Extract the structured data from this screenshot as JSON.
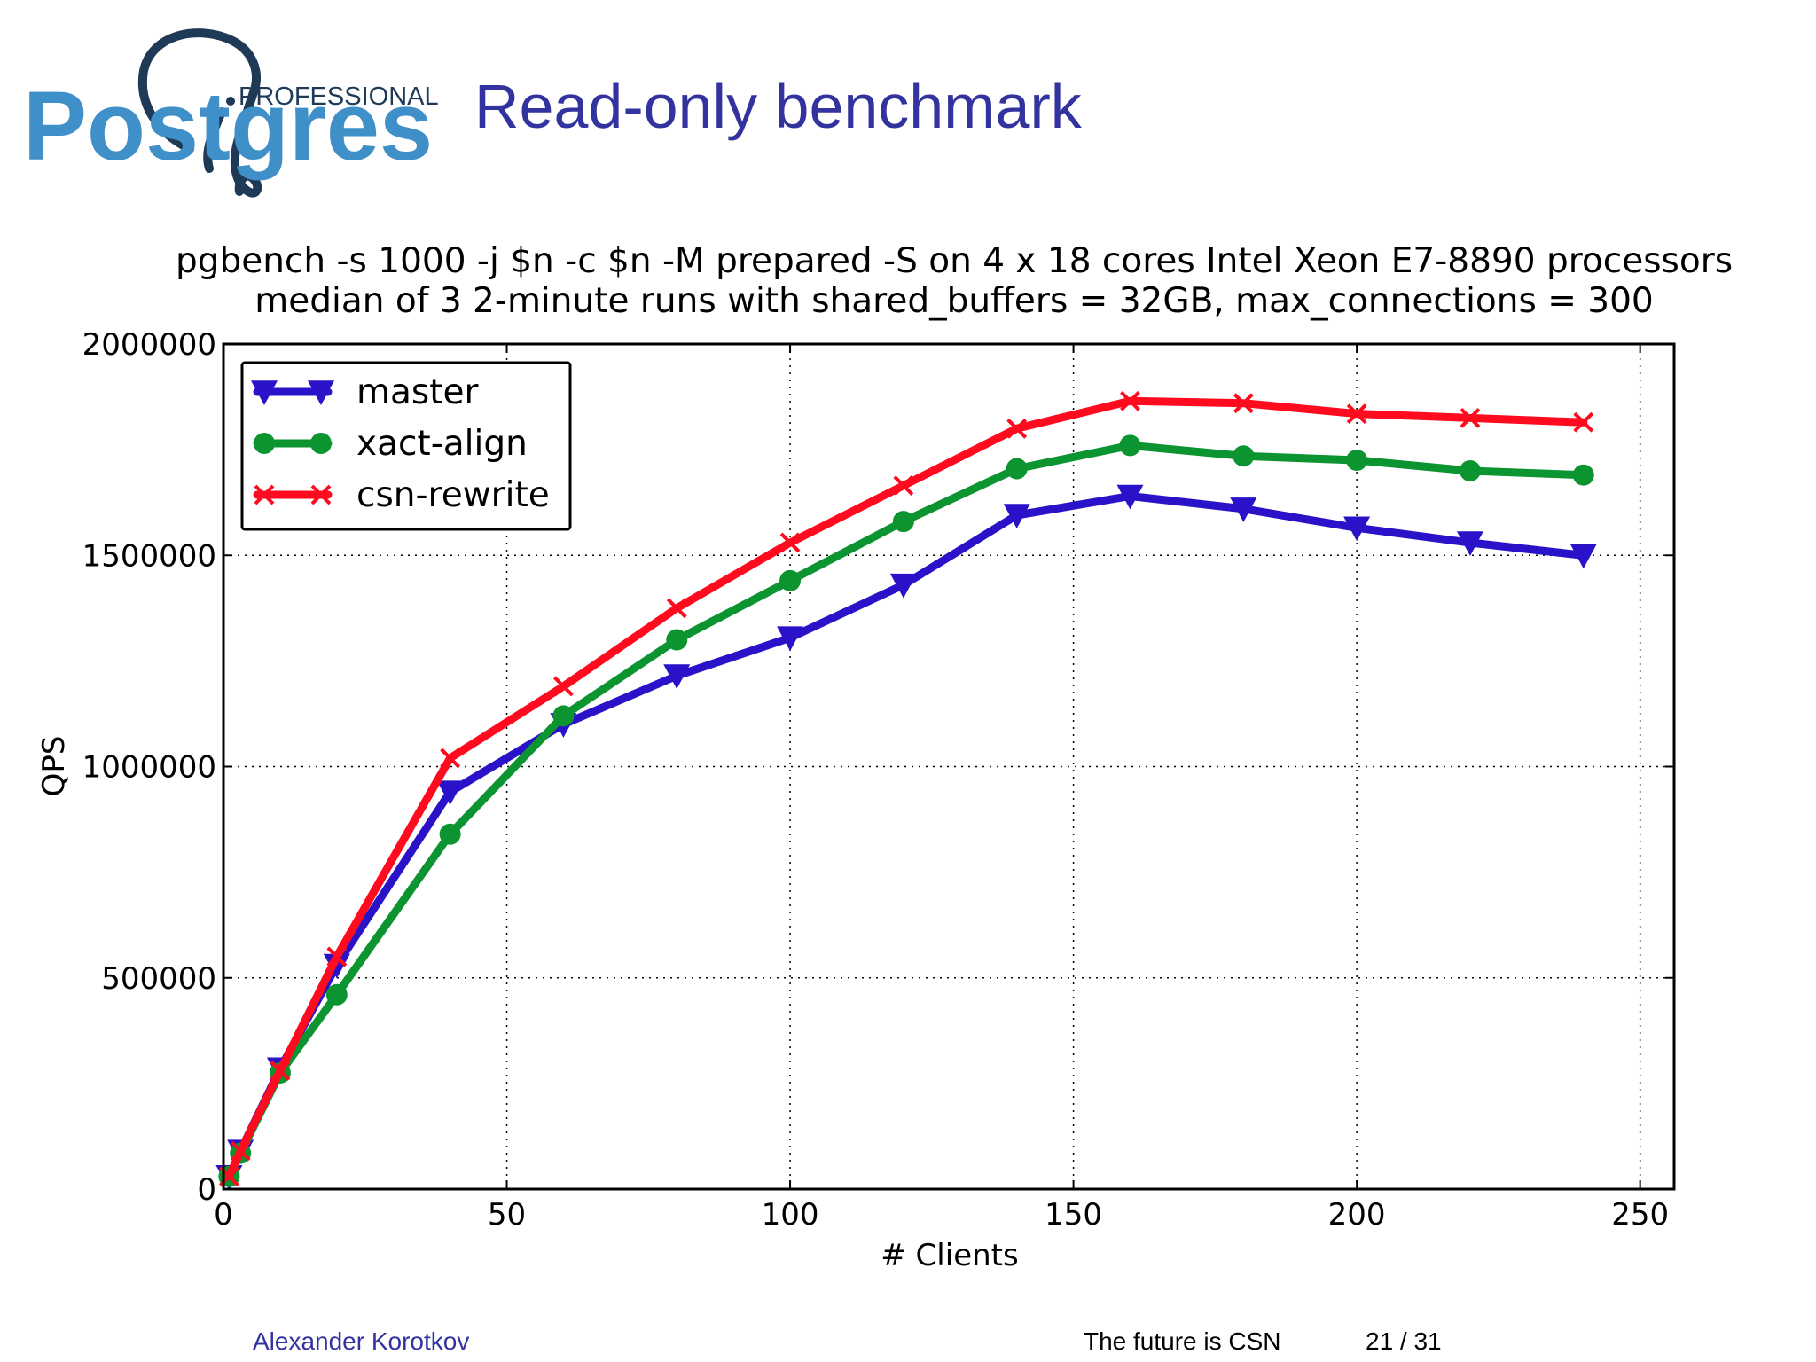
{
  "slide": {
    "title": "Read-only benchmark",
    "logo_small": "PROFESSIONAL",
    "logo_big": "Postgres",
    "author": "Alexander Korotkov",
    "talk": "The future is CSN",
    "page": "21 / 31"
  },
  "colors": {
    "title": "#33339f",
    "logo_blue": "#3f8fc8",
    "logo_dark": "#1e3a57"
  },
  "chart_data": {
    "type": "line",
    "title": "pgbench -s 1000 -j $n -c $n -M prepared -S on 4 x 18 cores Intel Xeon E7-8890 processors",
    "subtitle": "median of 3 2-minute runs with shared_buffers = 32GB, max_connections = 300",
    "xlabel": "# Clients",
    "ylabel": "QPS",
    "xlim": [
      0,
      256
    ],
    "ylim": [
      0,
      2000000
    ],
    "xticks": [
      0,
      50,
      100,
      150,
      200,
      250
    ],
    "yticks": [
      0,
      500000,
      1000000,
      1500000,
      2000000
    ],
    "grid": true,
    "grid_style": "dotted",
    "legend_position": "top-left",
    "series": [
      {
        "name": "master",
        "color": "#2a12c9",
        "marker": "triangle-down",
        "x": [
          1,
          3,
          10,
          20,
          40,
          60,
          80,
          100,
          120,
          140,
          160,
          180,
          200,
          220,
          240
        ],
        "y": [
          30000,
          90000,
          285000,
          530000,
          940000,
          1100000,
          1215000,
          1305000,
          1430000,
          1595000,
          1640000,
          1610000,
          1565000,
          1530000,
          1500000
        ]
      },
      {
        "name": "xact-align",
        "color": "#0c9431",
        "marker": "circle",
        "x": [
          1,
          3,
          10,
          20,
          40,
          60,
          80,
          100,
          120,
          140,
          160,
          180,
          200,
          220,
          240
        ],
        "y": [
          30000,
          85000,
          275000,
          460000,
          840000,
          1120000,
          1300000,
          1440000,
          1580000,
          1705000,
          1760000,
          1735000,
          1725000,
          1700000,
          1690000
        ]
      },
      {
        "name": "csn-rewrite",
        "color": "#ff0a1e",
        "marker": "x",
        "x": [
          1,
          3,
          10,
          20,
          40,
          60,
          80,
          100,
          120,
          140,
          160,
          180,
          200,
          220,
          240
        ],
        "y": [
          30000,
          90000,
          280000,
          550000,
          1020000,
          1190000,
          1375000,
          1530000,
          1665000,
          1800000,
          1865000,
          1860000,
          1835000,
          1825000,
          1815000
        ]
      }
    ]
  }
}
